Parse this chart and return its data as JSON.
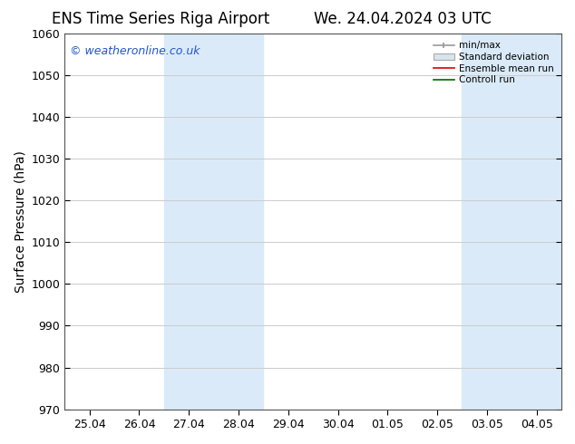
{
  "title_left": "ENS Time Series Riga Airport",
  "title_right": "We. 24.04.2024 03 UTC",
  "ylabel": "Surface Pressure (hPa)",
  "ylim": [
    970,
    1060
  ],
  "yticks": [
    970,
    980,
    990,
    1000,
    1010,
    1020,
    1030,
    1040,
    1050,
    1060
  ],
  "watermark": "© weatheronline.co.uk",
  "watermark_color": "#2255cc",
  "x_tick_labels": [
    "25.04",
    "26.04",
    "27.04",
    "28.04",
    "29.04",
    "30.04",
    "01.05",
    "02.05",
    "03.05",
    "04.05"
  ],
  "x_tick_positions": [
    0,
    1,
    2,
    3,
    4,
    5,
    6,
    7,
    8,
    9
  ],
  "shading_regions": [
    {
      "x_start": 1.5,
      "x_end": 2.5,
      "color": "#daeaf8"
    },
    {
      "x_start": 2.5,
      "x_end": 3.5,
      "color": "#daeaf8"
    },
    {
      "x_start": 7.5,
      "x_end": 8.5,
      "color": "#daeaf8"
    },
    {
      "x_start": 8.5,
      "x_end": 9.5,
      "color": "#daeaf8"
    }
  ],
  "legend_labels": [
    "min/max",
    "Standard deviation",
    "Ensemble mean run",
    "Controll run"
  ],
  "bg_color": "#ffffff",
  "grid_color": "#cccccc",
  "title_fontsize": 12,
  "axis_fontsize": 10,
  "tick_fontsize": 9,
  "xlim": [
    -0.5,
    9.5
  ]
}
